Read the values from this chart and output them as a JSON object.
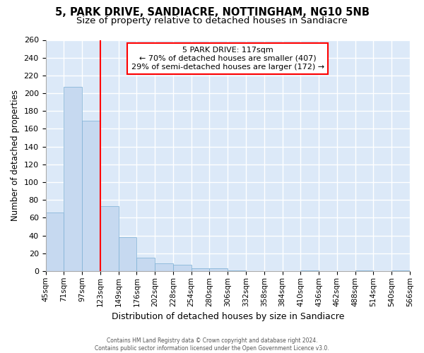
{
  "title1": "5, PARK DRIVE, SANDIACRE, NOTTINGHAM, NG10 5NB",
  "title2": "Size of property relative to detached houses in Sandiacre",
  "xlabel": "Distribution of detached houses by size in Sandiacre",
  "ylabel": "Number of detached properties",
  "annotation_title": "5 PARK DRIVE: 117sqm",
  "annotation_line1": "← 70% of detached houses are smaller (407)",
  "annotation_line2": "29% of semi-detached houses are larger (172) →",
  "footer1": "Contains HM Land Registry data © Crown copyright and database right 2024.",
  "footer2": "Contains public sector information licensed under the Open Government Licence v3.0.",
  "bar_values": [
    66,
    207,
    169,
    73,
    38,
    15,
    9,
    7,
    3,
    3,
    1,
    0,
    0,
    0,
    1,
    0,
    0,
    1,
    0,
    1
  ],
  "categories": [
    "45sqm",
    "71sqm",
    "97sqm",
    "123sqm",
    "149sqm",
    "176sqm",
    "202sqm",
    "228sqm",
    "254sqm",
    "280sqm",
    "306sqm",
    "332sqm",
    "358sqm",
    "384sqm",
    "410sqm",
    "436sqm",
    "462sqm",
    "488sqm",
    "514sqm",
    "540sqm",
    "566sqm"
  ],
  "bar_color": "#c6d9f0",
  "bar_edge_color": "#7bafd4",
  "vline_x": 3,
  "vline_color": "red",
  "annotation_box_color": "white",
  "annotation_box_edge": "red",
  "ylim": [
    0,
    260
  ],
  "yticks": [
    0,
    20,
    40,
    60,
    80,
    100,
    120,
    140,
    160,
    180,
    200,
    220,
    240,
    260
  ],
  "bg_color": "#dce9f8",
  "grid_color": "white",
  "title1_fontsize": 10.5,
  "title2_fontsize": 9.5
}
